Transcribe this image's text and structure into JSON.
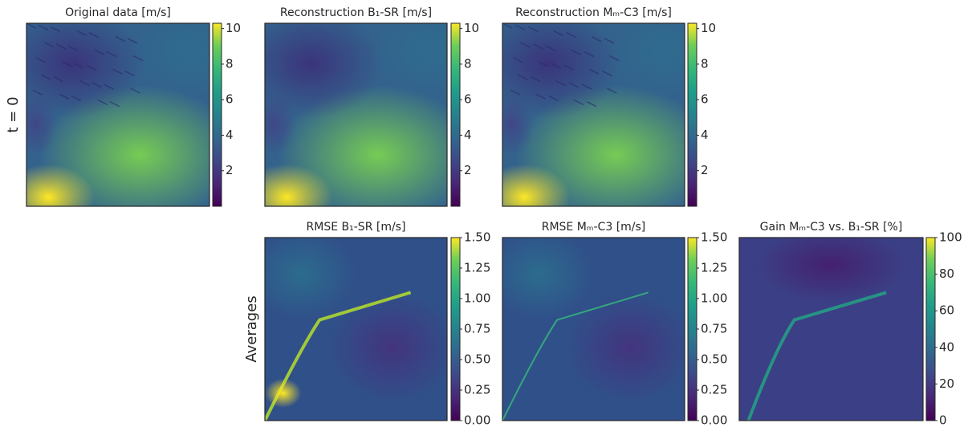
{
  "chart_data": [
    {
      "type": "heatmap",
      "title": "Original data [m/s]",
      "ylabel": "t = 0",
      "colormap": "viridis",
      "clim": [
        0,
        10.3
      ],
      "cticks": [
        2,
        4,
        6,
        8,
        10
      ]
    },
    {
      "type": "heatmap",
      "title": "Reconstruction B₁-SR [m/s]",
      "colormap": "viridis",
      "clim": [
        0,
        10.3
      ],
      "cticks": [
        2,
        4,
        6,
        8,
        10
      ]
    },
    {
      "type": "heatmap",
      "title": "Reconstruction Mₘ-C3 [m/s]",
      "colormap": "viridis",
      "clim": [
        0,
        10.3
      ],
      "cticks": [
        2,
        4,
        6,
        8,
        10
      ]
    },
    {
      "type": "heatmap",
      "title": "RMSE B₁-SR [m/s]",
      "ylabel": "Averages",
      "colormap": "viridis",
      "clim": [
        0,
        1.5
      ],
      "cticks": [
        {
          "value": 0,
          "label": "0.00"
        },
        {
          "value": 0.25,
          "label": "0.25"
        },
        {
          "value": 0.5,
          "label": "0.50"
        },
        {
          "value": 0.75,
          "label": "0.75"
        },
        {
          "value": 1,
          "label": "1.00"
        },
        {
          "value": 1.25,
          "label": "1.25"
        },
        {
          "value": 1.5,
          "label": "1.50"
        }
      ]
    },
    {
      "type": "heatmap",
      "title": "RMSE Mₘ-C3 [m/s]",
      "colormap": "viridis",
      "clim": [
        0,
        1.5
      ],
      "cticks": [
        {
          "value": 0,
          "label": "0.00"
        },
        {
          "value": 0.25,
          "label": "0.25"
        },
        {
          "value": 0.5,
          "label": "0.50"
        },
        {
          "value": 0.75,
          "label": "0.75"
        },
        {
          "value": 1,
          "label": "1.00"
        },
        {
          "value": 1.25,
          "label": "1.25"
        },
        {
          "value": 1.5,
          "label": "1.50"
        }
      ]
    },
    {
      "type": "heatmap",
      "title": "Gain Mₘ-C3 vs. B₁-SR [%]",
      "colormap": "viridis",
      "clim": [
        0,
        100
      ],
      "cticks": [
        0,
        20,
        40,
        60,
        80,
        100
      ]
    }
  ]
}
